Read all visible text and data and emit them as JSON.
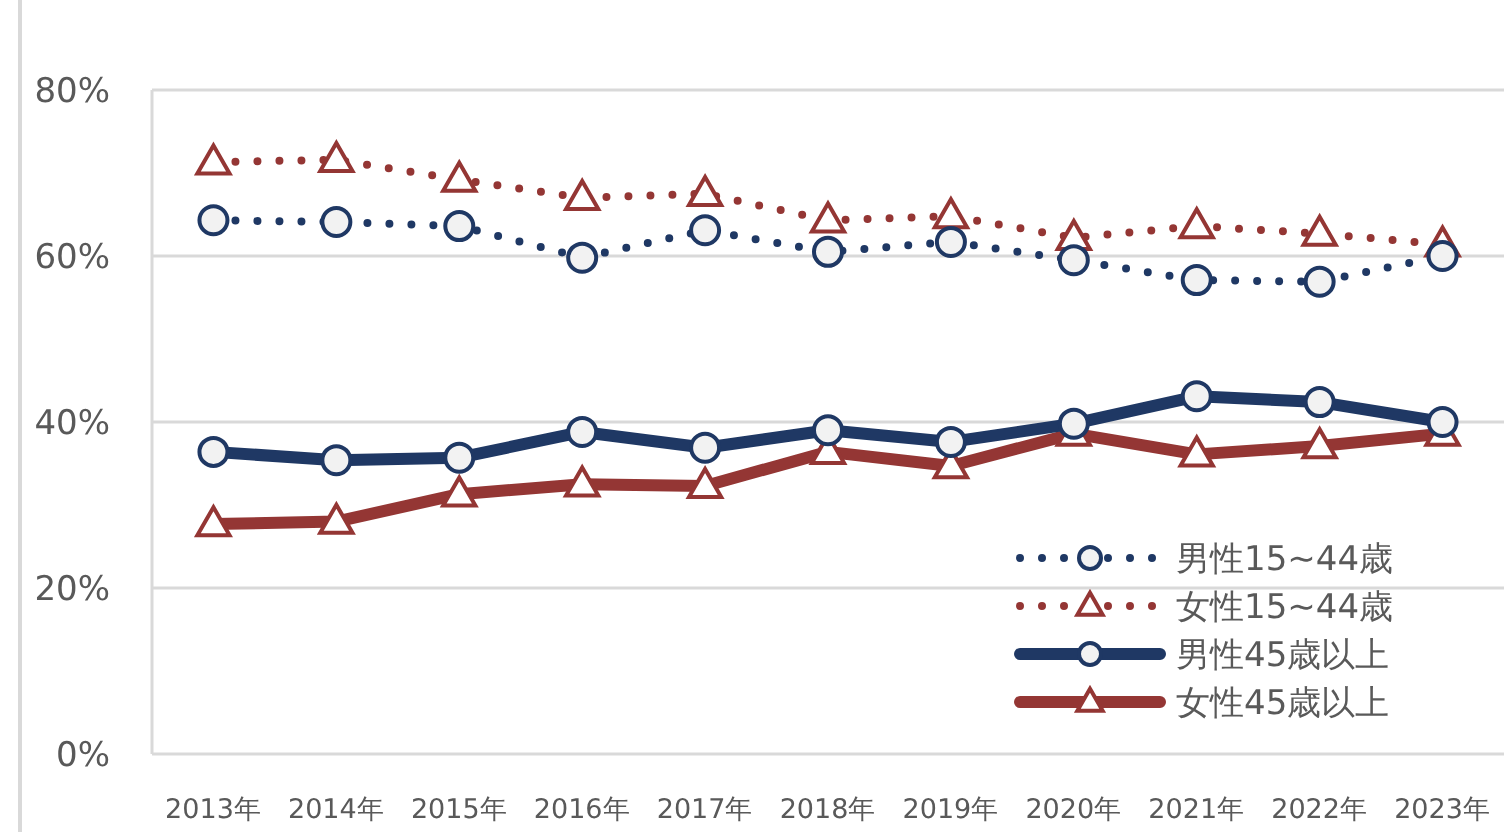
{
  "chart_data": {
    "type": "line",
    "categories": [
      "2013年",
      "2014年",
      "2015年",
      "2016年",
      "2017年",
      "2018年",
      "2019年",
      "2020年",
      "2021年",
      "2022年",
      "2023年"
    ],
    "series": [
      {
        "name": "男性15~44歳",
        "color": "#1f3864",
        "marker": "circle",
        "line_style": "dotted",
        "values": [
          64.3,
          64.1,
          63.6,
          59.8,
          63.1,
          60.5,
          61.7,
          59.5,
          57.1,
          56.9,
          60.0
        ]
      },
      {
        "name": "女性15~44歳",
        "color": "#943634",
        "marker": "triangle",
        "line_style": "dotted",
        "values": [
          71.3,
          71.6,
          69.2,
          67.0,
          67.5,
          64.3,
          64.8,
          62.2,
          63.6,
          62.7,
          61.4
        ]
      },
      {
        "name": "男性45歳以上",
        "color": "#1f3864",
        "marker": "circle",
        "line_style": "solid",
        "values": [
          36.4,
          35.4,
          35.7,
          38.8,
          36.9,
          39.0,
          37.6,
          39.8,
          43.1,
          42.4,
          40.0
        ]
      },
      {
        "name": "女性45歳以上",
        "color": "#943634",
        "marker": "triangle",
        "line_style": "solid",
        "values": [
          27.7,
          28.0,
          31.3,
          32.5,
          32.3,
          36.4,
          34.7,
          38.6,
          36.1,
          37.1,
          38.6
        ]
      }
    ],
    "ylim": [
      0,
      80
    ],
    "yticks": [
      {
        "value": 0,
        "label": "0%"
      },
      {
        "value": 20,
        "label": "20%"
      },
      {
        "value": 40,
        "label": "40%"
      },
      {
        "value": 60,
        "label": "60%"
      },
      {
        "value": 80,
        "label": "80%"
      }
    ],
    "grid": "y",
    "legend": "bottom right"
  }
}
